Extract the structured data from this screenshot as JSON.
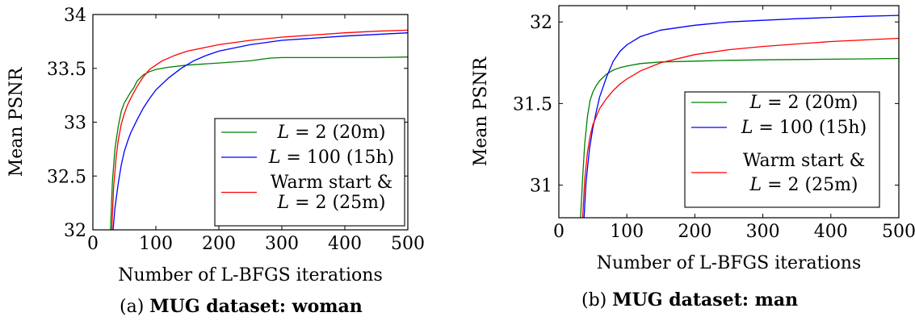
{
  "figure": {
    "subplots": [
      {
        "caption_prefix": "(a)",
        "caption_bold": "MUG dataset: woman"
      },
      {
        "caption_prefix": "(b)",
        "caption_bold": "MUG dataset: man"
      }
    ]
  },
  "chart_data": [
    {
      "type": "line",
      "xlabel": "Number of L-BFGS iterations",
      "ylabel": "Mean PSNR",
      "xlim": [
        0,
        500
      ],
      "ylim": [
        32,
        34
      ],
      "xticks": [
        0,
        100,
        200,
        300,
        400,
        500
      ],
      "xtick_labels": [
        "0",
        "100",
        "200",
        "300",
        "400",
        "500"
      ],
      "yticks": [
        32,
        32.5,
        33,
        33.5,
        34
      ],
      "ytick_labels": [
        "32",
        "32.5",
        "33",
        "33.5",
        "34"
      ],
      "grid": false,
      "legend_position": "center-right",
      "series": [
        {
          "name": "L = 2 (20m)",
          "legend_lines": [
            "L = 2 (20m)"
          ],
          "color": "#008000",
          "x": [
            28,
            31,
            35,
            40,
            45,
            50,
            55,
            60,
            65,
            70,
            80,
            90,
            100,
            120,
            150,
            200,
            250,
            280,
            300,
            350,
            400,
            450,
            500
          ],
          "y": [
            32.0,
            32.45,
            32.75,
            32.95,
            33.1,
            33.18,
            33.23,
            33.28,
            33.32,
            33.38,
            33.44,
            33.47,
            33.49,
            33.51,
            33.53,
            33.55,
            33.57,
            33.595,
            33.6,
            33.6,
            33.6,
            33.6,
            33.605
          ]
        },
        {
          "name": "L = 100 (15h)",
          "legend_lines": [
            "L = 100 (15h)"
          ],
          "color": "#0000ff",
          "x": [
            32,
            35,
            40,
            45,
            50,
            55,
            60,
            70,
            80,
            90,
            100,
            120,
            140,
            160,
            180,
            200,
            250,
            300,
            350,
            400,
            450,
            500
          ],
          "y": [
            32.0,
            32.2,
            32.42,
            32.6,
            32.73,
            32.82,
            32.9,
            33.02,
            33.13,
            33.22,
            33.3,
            33.41,
            33.5,
            33.57,
            33.62,
            33.66,
            33.72,
            33.76,
            33.78,
            33.8,
            33.815,
            33.83
          ]
        },
        {
          "name": "Warm start & L = 2 (25m)",
          "legend_lines": [
            "Warm start &",
            "L = 2 (25m)"
          ],
          "color": "#ff0000",
          "x": [
            30,
            33,
            37,
            40,
            45,
            50,
            55,
            60,
            70,
            80,
            90,
            100,
            110,
            130,
            150,
            200,
            250,
            300,
            350,
            400,
            450,
            500
          ],
          "y": [
            32.0,
            32.4,
            32.68,
            32.82,
            32.98,
            33.08,
            33.16,
            33.22,
            33.33,
            33.42,
            33.49,
            33.53,
            33.57,
            33.62,
            33.66,
            33.72,
            33.76,
            33.79,
            33.81,
            33.83,
            33.845,
            33.855
          ]
        }
      ]
    },
    {
      "type": "line",
      "xlabel": "Number of L-BFGS iterations",
      "ylabel": "Mean PSNR",
      "xlim": [
        0,
        500
      ],
      "ylim": [
        30.8,
        32.1
      ],
      "xticks": [
        0,
        100,
        200,
        300,
        400,
        500
      ],
      "xtick_labels": [
        "0",
        "100",
        "200",
        "300",
        "400",
        "500"
      ],
      "yticks": [
        31,
        31.5,
        32
      ],
      "ytick_labels": [
        "31",
        "31.5",
        "32"
      ],
      "grid": false,
      "legend_position": "center-right",
      "series": [
        {
          "name": "L = 2 (20m)",
          "legend_lines": [
            "L = 2 (20m)"
          ],
          "color": "#008000",
          "x": [
            32,
            35,
            38,
            42,
            46,
            50,
            55,
            60,
            70,
            80,
            90,
            100,
            120,
            150,
            200,
            250,
            300,
            350,
            400,
            450,
            500
          ],
          "y": [
            30.8,
            31.05,
            31.25,
            31.42,
            31.52,
            31.57,
            31.61,
            31.64,
            31.68,
            31.705,
            31.72,
            31.73,
            31.745,
            31.755,
            31.76,
            31.765,
            31.768,
            31.77,
            31.772,
            31.774,
            31.776
          ]
        },
        {
          "name": "L = 100 (15h)",
          "legend_lines": [
            "L = 100 (15h)"
          ],
          "color": "#0000ff",
          "x": [
            37,
            40,
            45,
            50,
            55,
            60,
            65,
            70,
            80,
            90,
            100,
            120,
            150,
            200,
            250,
            300,
            350,
            400,
            450,
            500
          ],
          "y": [
            30.8,
            31.02,
            31.22,
            31.35,
            31.45,
            31.54,
            31.6,
            31.66,
            31.76,
            31.82,
            31.86,
            31.91,
            31.95,
            31.98,
            32.0,
            32.01,
            32.02,
            32.028,
            32.035,
            32.04
          ]
        },
        {
          "name": "Warm start & L = 2 (25m)",
          "legend_lines": [
            "Warm start &",
            "L = 2 (25m)"
          ],
          "color": "#ff0000",
          "x": [
            35,
            38,
            42,
            46,
            50,
            55,
            60,
            70,
            80,
            90,
            100,
            120,
            150,
            200,
            250,
            300,
            350,
            400,
            450,
            500
          ],
          "y": [
            30.8,
            31.03,
            31.2,
            31.3,
            31.37,
            31.42,
            31.47,
            31.53,
            31.58,
            31.62,
            31.65,
            31.7,
            31.75,
            31.8,
            31.83,
            31.85,
            31.865,
            31.88,
            31.89,
            31.9
          ]
        }
      ]
    }
  ]
}
